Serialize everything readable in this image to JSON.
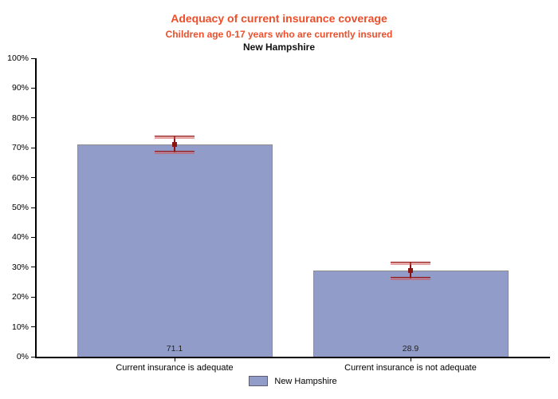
{
  "chart_data": {
    "type": "bar",
    "title": "Adequacy of current insurance coverage",
    "subtitle": "Children age 0-17 years who are currently insured",
    "region_title": "New Hampshire",
    "categories": [
      "Current insurance is adequate",
      "Current insurance is not adequate"
    ],
    "series": [
      {
        "name": "New Hampshire",
        "values": [
          71.1,
          28.9
        ],
        "ci_low": [
          68.4,
          26.2
        ],
        "ci_high": [
          73.8,
          31.6
        ]
      }
    ],
    "value_labels": [
      "71.1",
      "28.9"
    ],
    "y_ticks": [
      "0%",
      "10%",
      "20%",
      "30%",
      "40%",
      "50%",
      "60%",
      "70%",
      "80%",
      "90%",
      "100%"
    ],
    "ylim": [
      0,
      100
    ],
    "grid": false,
    "legend_position": "bottom",
    "colors": {
      "title": "#EE4E2A",
      "subtitle": "#EE4E2A",
      "bar_fill": "#919CC9",
      "bar_border": "#8D8D8D",
      "error_bar": "#8B1515",
      "error_cap_tint": "rgba(205,90,90,0.55)",
      "axis": "#000000"
    }
  }
}
